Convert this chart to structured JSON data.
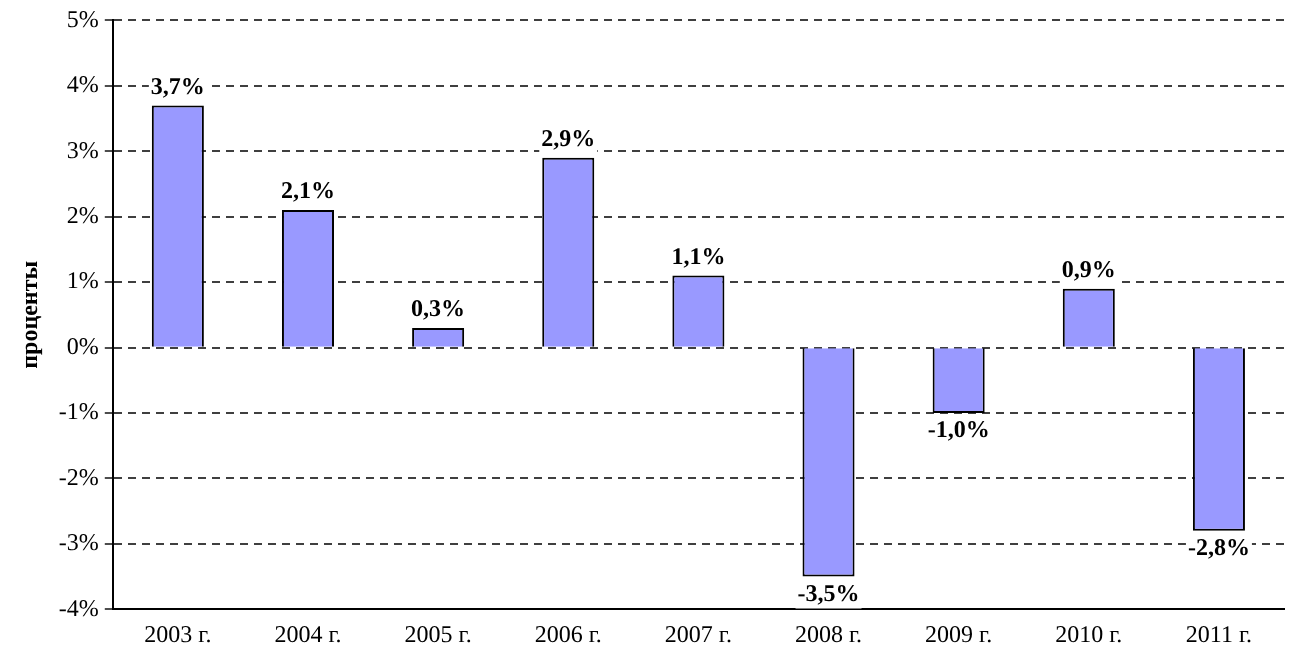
{
  "chart_data": {
    "type": "bar",
    "ylabel": "проценты",
    "categories": [
      "2003 г.",
      "2004 г.",
      "2005 г.",
      "2006 г.",
      "2007 г.",
      "2008 г.",
      "2009 г.",
      "2010 г.",
      "2011 г."
    ],
    "values": [
      3.7,
      2.1,
      0.3,
      2.9,
      1.1,
      -3.5,
      -1.0,
      0.9,
      -2.8
    ],
    "value_labels": [
      "3,7%",
      "2,1%",
      "0,3%",
      "2,9%",
      "1,1%",
      "-3,5%",
      "-1,0%",
      "0,9%",
      "-2,8%"
    ],
    "color": "#9999ff",
    "ylim": [
      -4,
      5
    ],
    "yticks": [
      {
        "value": -4,
        "label": "-4%"
      },
      {
        "value": -3,
        "label": "-3%"
      },
      {
        "value": -2,
        "label": "-2%"
      },
      {
        "value": -1,
        "label": "-1%"
      },
      {
        "value": 0,
        "label": "0%"
      },
      {
        "value": 1,
        "label": "1%"
      },
      {
        "value": 2,
        "label": "2%"
      },
      {
        "value": 3,
        "label": "3%"
      },
      {
        "value": 4,
        "label": "4%"
      },
      {
        "value": 5,
        "label": "5%"
      }
    ],
    "grid": "y",
    "legend": false
  }
}
